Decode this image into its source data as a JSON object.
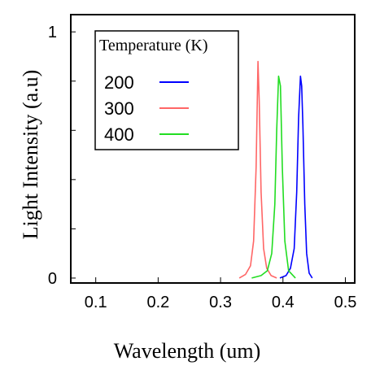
{
  "chart_data": {
    "type": "line",
    "title": "",
    "xlabel": "Wavelength (um)",
    "ylabel": "Light Intensity (a.u)",
    "xlim": [
      0.06,
      0.515
    ],
    "ylim": [
      -0.02,
      1.07
    ],
    "x_ticks": [
      "0.1",
      "0.2",
      "0.3",
      "0.4",
      "0.5"
    ],
    "y_ticks": [
      "0",
      "1"
    ],
    "grid": false,
    "legend": {
      "title": "Temperature (K)",
      "position": "top-left",
      "entries": [
        "200",
        "300",
        "400"
      ]
    },
    "series": [
      {
        "name": "200",
        "color": "#0000ff",
        "x": [
          0.395,
          0.405,
          0.412,
          0.418,
          0.422,
          0.425,
          0.428,
          0.43,
          0.432,
          0.435,
          0.438,
          0.442,
          0.447
        ],
        "y": [
          0.0,
          0.01,
          0.04,
          0.12,
          0.35,
          0.65,
          0.82,
          0.78,
          0.62,
          0.3,
          0.1,
          0.02,
          0.0
        ]
      },
      {
        "name": "300",
        "color": "#ff6666",
        "x": [
          0.33,
          0.34,
          0.348,
          0.353,
          0.357,
          0.36,
          0.362,
          0.365,
          0.369,
          0.374,
          0.381,
          0.39
        ],
        "y": [
          0.0,
          0.015,
          0.05,
          0.15,
          0.45,
          0.88,
          0.72,
          0.35,
          0.12,
          0.04,
          0.01,
          0.0
        ]
      },
      {
        "name": "400",
        "color": "#22dd22",
        "x": [
          0.35,
          0.365,
          0.375,
          0.382,
          0.387,
          0.39,
          0.393,
          0.396,
          0.399,
          0.403,
          0.409,
          0.42
        ],
        "y": [
          0.0,
          0.01,
          0.03,
          0.1,
          0.3,
          0.6,
          0.82,
          0.78,
          0.45,
          0.15,
          0.03,
          0.0
        ]
      }
    ]
  }
}
